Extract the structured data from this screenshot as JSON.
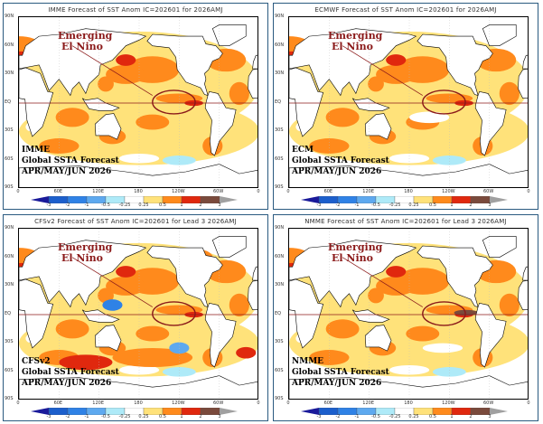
{
  "panels": [
    {
      "title": "IMME Forecast of SST Anom IC=202601 for 2026AMJ",
      "model": "IMME",
      "annotation_line1": "Emerging",
      "annotation_line2": "El Nino",
      "subtitle": "Global SSTA Forecast",
      "season": "APR/MAY/JUN 2026"
    },
    {
      "title": "ECMWF Forecast of SST Anom IC=202601 for 2026AMJ",
      "model": "ECM",
      "annotation_line1": "Emerging",
      "annotation_line2": "El Nino",
      "subtitle": "Global SSTA Forecast",
      "season": "APR/MAY/JUN 2026"
    },
    {
      "title": "CFSv2 Forecast of SST Anom IC=202601 for Lead 3 2026AMJ",
      "model": "CFSv2",
      "annotation_line1": "Emerging",
      "annotation_line2": "El Nino",
      "subtitle": "Global SSTA Forecast",
      "season": "APR/MAY/JUN 2026"
    },
    {
      "title": "NMME Forecast of SST Anom IC=202601 for Lead 3 2026AMJ",
      "model": "NMME",
      "annotation_line1": "Emerging",
      "annotation_line2": "El Nino",
      "subtitle": "Global SSTA Forecast",
      "season": "APR/MAY/JUN 2026"
    }
  ],
  "lat_labels": [
    "90N",
    "60N",
    "30N",
    "EQ",
    "30S",
    "60S",
    "90S"
  ],
  "lon_labels": [
    "0",
    "60E",
    "120E",
    "180",
    "120W",
    "60W",
    "0"
  ],
  "colorbar": {
    "labels": [
      "-3",
      "-2",
      "-1",
      "-0.5",
      "-0.25",
      "0.25",
      "0.5",
      "1",
      "2",
      "3"
    ],
    "colors": [
      "#1a1a9a",
      "#1c5fcc",
      "#2f82e6",
      "#5ea9ef",
      "#aeeaf8",
      "#ffffff",
      "#ffe27a",
      "#ff8a1c",
      "#e0280e",
      "#7a4a3c",
      "#a0a0a0"
    ]
  },
  "colors": {
    "frame": "#2a5a80",
    "annotation": "#8b1a1a",
    "equator": "#8b1a1a"
  }
}
